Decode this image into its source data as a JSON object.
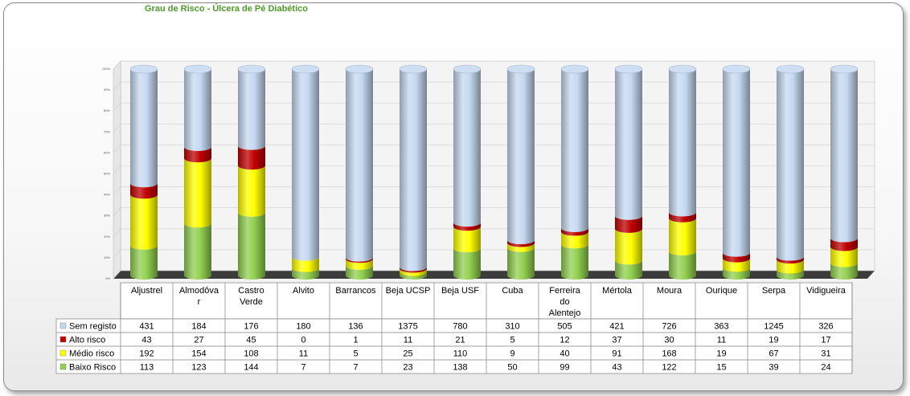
{
  "chart_data": {
    "type": "bar",
    "stacked": "percent",
    "title": "Grau de Risco - Úlcera de Pé Diabético",
    "categories": [
      [
        "Aljustrel"
      ],
      [
        "Almodôva",
        "r"
      ],
      [
        "Castro",
        "Verde"
      ],
      [
        "Alvito"
      ],
      [
        "Barrancos"
      ],
      [
        "Beja UCSP"
      ],
      [
        "Beja USF"
      ],
      [
        "Cuba"
      ],
      [
        "Ferreira",
        "do",
        "Alentejo"
      ],
      [
        "Mértola"
      ],
      [
        "Moura"
      ],
      [
        "Ourique"
      ],
      [
        "Serpa"
      ],
      [
        "Vidigueira"
      ]
    ],
    "series": [
      {
        "name": "Sem registo",
        "color": "#c6d9f1",
        "values": [
          431,
          184,
          176,
          180,
          136,
          1375,
          780,
          310,
          505,
          421,
          726,
          363,
          1245,
          326
        ]
      },
      {
        "name": "Alto risco",
        "color": "#c00000",
        "values": [
          43,
          27,
          45,
          0,
          1,
          11,
          21,
          5,
          12,
          37,
          30,
          11,
          19,
          17
        ]
      },
      {
        "name": "Médio risco",
        "color": "#ffff00",
        "values": [
          192,
          154,
          108,
          11,
          5,
          25,
          110,
          9,
          40,
          91,
          168,
          19,
          67,
          31
        ]
      },
      {
        "name": "Baixo Risco",
        "color": "#92d050",
        "values": [
          113,
          123,
          144,
          7,
          7,
          23,
          138,
          50,
          99,
          43,
          122,
          15,
          39,
          24
        ]
      }
    ],
    "ylim": [
      0,
      100
    ],
    "yticks": [
      "0%",
      "10%",
      "20%",
      "30%",
      "40%",
      "50%",
      "60%",
      "70%",
      "80%",
      "90%",
      "100%"
    ],
    "legend": "bottom-table",
    "grid": true
  }
}
